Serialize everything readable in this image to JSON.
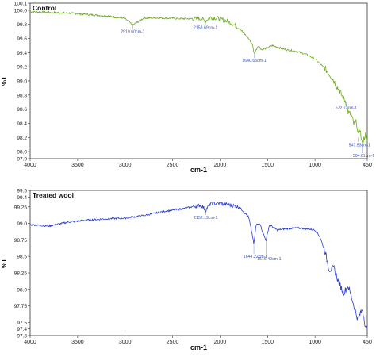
{
  "chart_data": [
    {
      "type": "line",
      "title": "Control",
      "xlabel": "cm-1",
      "ylabel": "%T",
      "xlim": [
        4000,
        450
      ],
      "x_reversed": true,
      "ylim": [
        97.9,
        100.1
      ],
      "xticks": [
        "4000",
        "3500",
        "3000",
        "2500",
        "2000",
        "1500",
        "1000",
        "450"
      ],
      "yticks": [
        "97.9",
        "98.0",
        "98.2",
        "98.4",
        "98.6",
        "98.8",
        "99.0",
        "99.2",
        "99.4",
        "99.6",
        "99.8",
        "100.0",
        "100.1"
      ],
      "color": "#6aaa1c",
      "series": [
        {
          "x": [
            4000,
            3800,
            3600,
            3400,
            3200,
            3000,
            2919,
            2800,
            2600,
            2400,
            2200,
            2153,
            2100,
            2000,
            1900,
            1800,
            1700,
            1660,
            1640,
            1600,
            1560,
            1500,
            1450,
            1400,
            1300,
            1200,
            1100,
            1000,
            900,
            850,
            800,
            760,
            700,
            672,
            650,
            620,
            590,
            560,
            547,
            530,
            504,
            470,
            450
          ],
          "y": [
            99.98,
            99.97,
            99.96,
            99.94,
            99.92,
            99.88,
            99.79,
            99.89,
            99.89,
            99.88,
            99.88,
            99.85,
            99.9,
            99.88,
            99.83,
            99.75,
            99.6,
            99.52,
            99.38,
            99.5,
            99.44,
            99.47,
            99.5,
            99.48,
            99.44,
            99.42,
            99.38,
            99.31,
            99.18,
            99.1,
            99.0,
            98.9,
            98.75,
            98.7,
            98.55,
            98.52,
            98.38,
            98.42,
            98.2,
            98.35,
            98.1,
            98.25,
            98.15
          ]
        }
      ],
      "annotations": [
        {
          "x": 2919,
          "y": 99.79,
          "label": "2919.60cm-1"
        },
        {
          "x": 2153,
          "y": 99.85,
          "label": "2153.69cm-1"
        },
        {
          "x": 1640,
          "y": 99.38,
          "label": "1640.65cm-1"
        },
        {
          "x": 672,
          "y": 98.7,
          "label": "672.72cm-1"
        },
        {
          "x": 547,
          "y": 98.2,
          "label": "547.53cm-1"
        },
        {
          "x": 504,
          "y": 98.1,
          "label": "504.61cm-1"
        }
      ]
    },
    {
      "type": "line",
      "title": "Treated wool",
      "xlabel": "cm-1",
      "ylabel": "%T",
      "xlim": [
        4000,
        450
      ],
      "x_reversed": true,
      "ylim": [
        97.3,
        99.5
      ],
      "xticks": [
        "4000",
        "3500",
        "3000",
        "2500",
        "2000",
        "1500",
        "1000",
        "450"
      ],
      "yticks": [
        "97.3",
        "97.4",
        "97.5",
        "97.75",
        "98.0",
        "98.25",
        "98.5",
        "98.75",
        "99.0",
        "99.25",
        "99.4",
        "99.5"
      ],
      "color": "#2a3fcc",
      "series": [
        {
          "x": [
            4000,
            3800,
            3600,
            3400,
            3200,
            3000,
            2900,
            2800,
            2600,
            2400,
            2300,
            2200,
            2152,
            2100,
            2000,
            1900,
            1800,
            1700,
            1660,
            1644,
            1620,
            1580,
            1550,
            1516,
            1480,
            1450,
            1400,
            1300,
            1200,
            1100,
            1000,
            950,
            900,
            850,
            800,
            750,
            700,
            650,
            600,
            550,
            500,
            470,
            450
          ],
          "y": [
            98.98,
            98.96,
            99.02,
            99.05,
            99.07,
            99.08,
            99.1,
            99.12,
            99.18,
            99.22,
            99.25,
            99.28,
            99.2,
            99.3,
            99.3,
            99.28,
            99.25,
            99.1,
            98.82,
            98.68,
            98.98,
            99.0,
            98.86,
            98.74,
            98.98,
            98.95,
            98.9,
            98.92,
            98.93,
            98.92,
            98.9,
            98.8,
            98.6,
            98.3,
            98.32,
            98.1,
            97.95,
            98.05,
            97.8,
            97.55,
            97.7,
            97.45,
            97.38
          ]
        }
      ],
      "annotations": [
        {
          "x": 2152,
          "y": 99.2,
          "label": "2152.19cm-1"
        },
        {
          "x": 1644,
          "y": 98.68,
          "label": "1644.22cm-1"
        },
        {
          "x": 1516,
          "y": 98.74,
          "label": "1516.40cm-1"
        }
      ]
    }
  ]
}
